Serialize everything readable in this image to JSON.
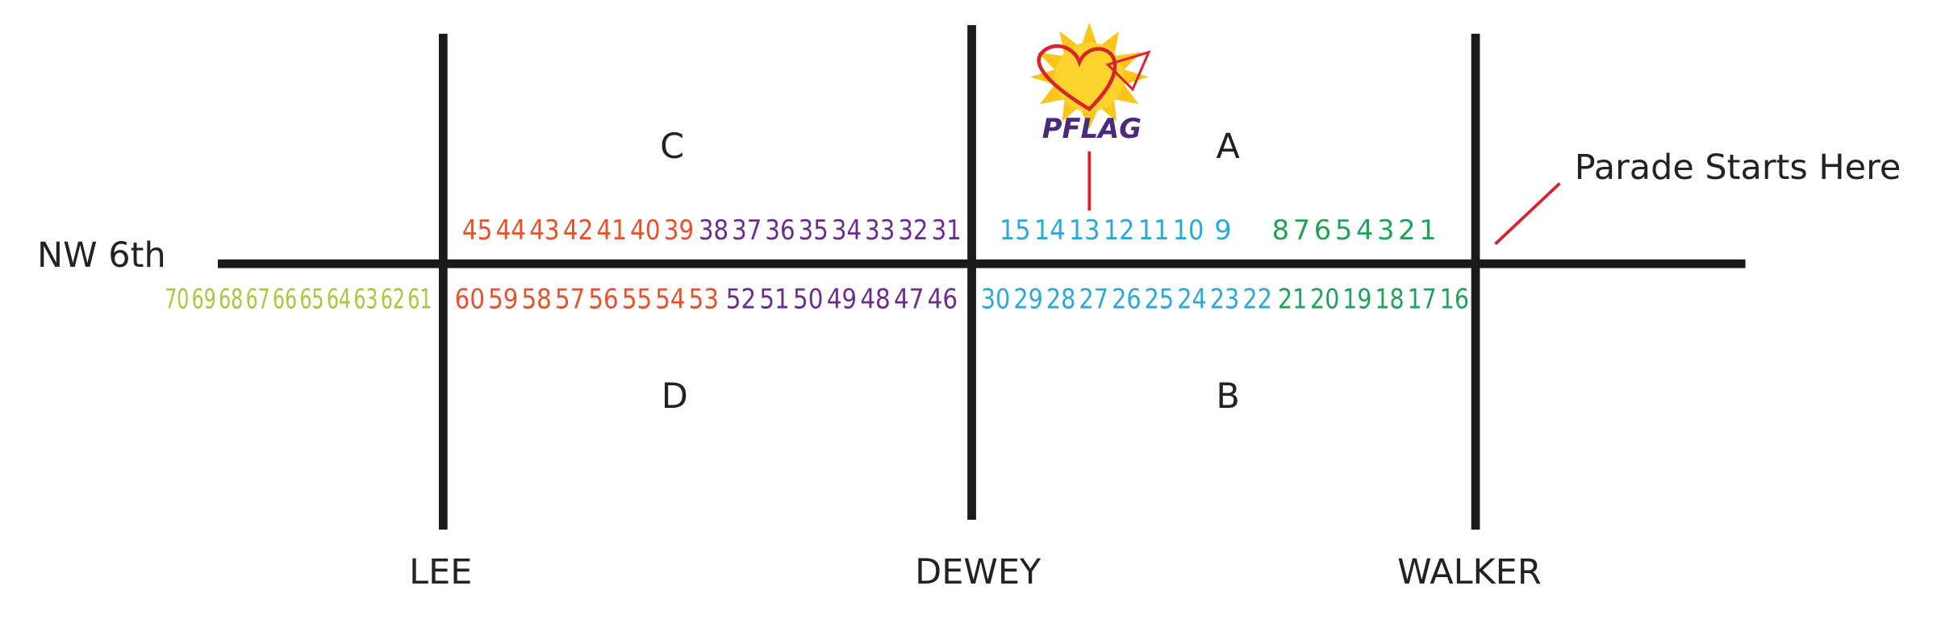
{
  "streets": {
    "horizontal": "NW 6th",
    "cross": [
      "LEE",
      "DEWEY",
      "WALKER"
    ]
  },
  "sections": [
    "C",
    "A",
    "D",
    "B"
  ],
  "start_label": "Parade Starts Here",
  "logo": "PFLAG",
  "rows": [
    {
      "groups": [
        {
          "color": "#e8502a",
          "numbers": [
            45,
            44,
            43,
            42,
            41,
            40,
            39
          ]
        },
        {
          "color": "#6b2c8f",
          "numbers": [
            38,
            37,
            36,
            35,
            34,
            33,
            32,
            31
          ]
        },
        {
          "color": "#29a9d9",
          "numbers": [
            15,
            14,
            13,
            12,
            11,
            10,
            9
          ]
        },
        {
          "color": "#1fa35a",
          "numbers": [
            8,
            7,
            6,
            5,
            4,
            3,
            2,
            1
          ]
        }
      ]
    },
    {
      "groups": [
        {
          "color": "#a8c83a",
          "numbers": [
            70,
            69,
            68,
            67,
            66,
            65,
            64,
            63,
            62,
            61
          ]
        },
        {
          "color": "#e8502a",
          "numbers": [
            60,
            59,
            58,
            57,
            56,
            55,
            54,
            53
          ]
        },
        {
          "color": "#6b2c8f",
          "numbers": [
            52,
            51,
            50,
            49,
            48,
            47,
            46
          ]
        },
        {
          "color": "#29a9d9",
          "numbers": [
            30,
            29,
            28,
            27,
            26,
            25,
            24,
            23,
            22
          ]
        },
        {
          "color": "#1fa35a",
          "numbers": [
            21,
            20,
            19,
            18,
            17,
            16
          ]
        }
      ]
    }
  ]
}
